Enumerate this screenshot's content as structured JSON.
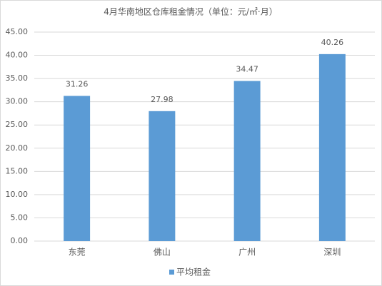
{
  "chart_data": {
    "type": "bar",
    "title": "4月华南地区仓库租金情况（单位：元/㎡·月）",
    "categories": [
      "东莞",
      "佛山",
      "广州",
      "深圳"
    ],
    "series": [
      {
        "name": "平均租金",
        "color": "#5b9bd5",
        "values": [
          31.26,
          27.98,
          34.47,
          40.26
        ]
      }
    ],
    "ylim": [
      0,
      45
    ],
    "yticks": [
      {
        "value": 0,
        "label": "0.00"
      },
      {
        "value": 5,
        "label": "5.00"
      },
      {
        "value": 10,
        "label": "10.00"
      },
      {
        "value": 15,
        "label": "15.00"
      },
      {
        "value": 20,
        "label": "20.00"
      },
      {
        "value": 25,
        "label": "25.00"
      },
      {
        "value": 30,
        "label": "30.00"
      },
      {
        "value": 35,
        "label": "35.00"
      },
      {
        "value": 40,
        "label": "40.00"
      },
      {
        "value": 45,
        "label": "45.00"
      }
    ],
    "grid": true,
    "legend": "bottom"
  }
}
